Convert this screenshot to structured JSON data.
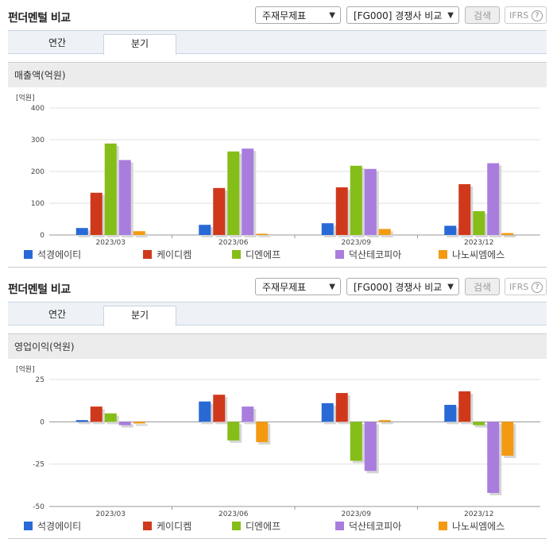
{
  "page": {
    "title": "펀더멘털 비교"
  },
  "controls": {
    "statement_select": "주재무제표",
    "compare_select": "[FG000] 경쟁사 비교",
    "search_label": "검색",
    "ifrs_label": "IFRS",
    "help_glyph": "?"
  },
  "tabs": [
    {
      "label": "연간"
    },
    {
      "label": "분기"
    }
  ],
  "legend": [
    {
      "name": "석경에이티",
      "color": "#2869d6"
    },
    {
      "name": "케이디켐",
      "color": "#d0381c"
    },
    {
      "name": "디엔에프",
      "color": "#86be19"
    },
    {
      "name": "덕산테코피아",
      "color": "#a97ddd"
    },
    {
      "name": "나노씨엠에스",
      "color": "#f39a12"
    }
  ],
  "chart_data": [
    {
      "type": "bar",
      "title": "매출액(억원)",
      "unit_label": "[억원]",
      "categories": [
        "2023/03",
        "2023/06",
        "2023/09",
        "2023/12"
      ],
      "ylim": [
        0,
        400
      ],
      "yticks": [
        0,
        100,
        200,
        300,
        400
      ],
      "grid": true,
      "legend_position": "bottom",
      "series": [
        {
          "name": "석경에이티",
          "values": [
            22,
            32,
            37,
            29
          ]
        },
        {
          "name": "케이디켐",
          "values": [
            133,
            148,
            150,
            160
          ]
        },
        {
          "name": "디엔에프",
          "values": [
            288,
            263,
            218,
            75
          ]
        },
        {
          "name": "덕산테코피아",
          "values": [
            236,
            272,
            208,
            226
          ]
        },
        {
          "name": "나노씨엠에스",
          "values": [
            12,
            4,
            19,
            6
          ]
        }
      ]
    },
    {
      "type": "bar",
      "title": "영업이익(억원)",
      "unit_label": "[억원]",
      "categories": [
        "2023/03",
        "2023/06",
        "2023/09",
        "2023/12"
      ],
      "ylim": [
        -50,
        25
      ],
      "yticks": [
        -50,
        -25,
        0,
        25
      ],
      "grid": true,
      "legend_position": "bottom",
      "series": [
        {
          "name": "석경에이티",
          "values": [
            1,
            12,
            11,
            10
          ]
        },
        {
          "name": "케이디켐",
          "values": [
            9,
            16,
            17,
            18
          ]
        },
        {
          "name": "디엔에프",
          "values": [
            5,
            -11,
            -23,
            -2
          ]
        },
        {
          "name": "덕산테코피아",
          "values": [
            -2,
            9,
            -29,
            -42
          ]
        },
        {
          "name": "나노씨엠에스",
          "values": [
            -1,
            -12,
            1,
            -20
          ]
        }
      ]
    }
  ]
}
